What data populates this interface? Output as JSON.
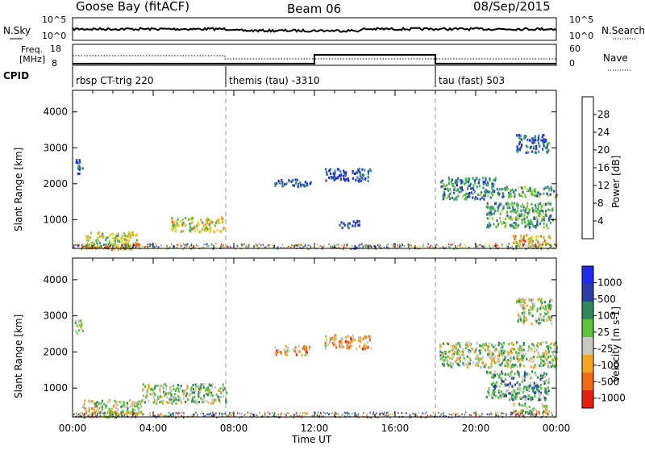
{
  "header": {
    "station": "Goose Bay (fitACF)",
    "beam": "Beam 06",
    "date": "08/Sep/2015"
  },
  "top_panels": {
    "nsky_label": "N.Sky",
    "nsky_ticks": [
      "10^5",
      "10^0"
    ],
    "nsearch_label": "N.Search",
    "nsearch_ticks": [
      "10^5",
      "10^0"
    ],
    "freq_label_1": "Freq.",
    "freq_label_2": "[MHz]",
    "freq_ticks": [
      "18",
      "8"
    ],
    "nave_label": "Nave",
    "nave_ticks": [
      "60",
      "0"
    ],
    "cpid_label": "CPID",
    "cpid_modes": [
      {
        "name": "rbsp CT-trig 220",
        "start_hour": 0
      },
      {
        "name": "themis (tau) -3310",
        "start_hour": 7.6
      },
      {
        "name": "tau (fast) 503",
        "start_hour": 18
      }
    ],
    "nave_steps": [
      {
        "start_hour": 0,
        "end_hour": 12,
        "value": 5
      },
      {
        "start_hour": 12,
        "end_hour": 18,
        "value": 30
      },
      {
        "start_hour": 18,
        "end_hour": 24,
        "value": 5
      }
    ]
  },
  "chart_data": [
    {
      "type": "heatmap",
      "title": "Power",
      "xlabel": "",
      "ylabel": "Slant Range [km]",
      "xlim": [
        0,
        24
      ],
      "ylim": [
        200,
        4600
      ],
      "yticks": [
        "1000",
        "2000",
        "3000",
        "4000"
      ],
      "colorbar_label": "Power [dB]",
      "colorbar_ticks": [
        "4",
        "8",
        "12",
        "16",
        "20",
        "24",
        "28"
      ],
      "colorbar_range": [
        0,
        30
      ],
      "colors": [
        "#1f2cf0",
        "#2c3ea8",
        "#2f6e9b",
        "#3a9a7a",
        "#4fbb55",
        "#9fcc3a",
        "#e8d82a",
        "#f5a623",
        "#f06a18",
        "#e61e12"
      ],
      "regions": [
        {
          "t0": 0.6,
          "t1": 3.2,
          "r0": 250,
          "r1": 700,
          "level": 0.55
        },
        {
          "t0": 0.4,
          "t1": 3.4,
          "r0": 200,
          "r1": 350,
          "level": 0.8
        },
        {
          "t0": 4.8,
          "t1": 7.5,
          "r0": 700,
          "r1": 1100,
          "level": 0.6
        },
        {
          "t0": 0.1,
          "t1": 0.5,
          "r0": 2300,
          "r1": 2700,
          "level": 0.2
        },
        {
          "t0": 10.0,
          "t1": 11.8,
          "r0": 1950,
          "r1": 2150,
          "level": 0.15
        },
        {
          "t0": 12.5,
          "t1": 14.8,
          "r0": 2100,
          "r1": 2450,
          "level": 0.15
        },
        {
          "t0": 18.2,
          "t1": 21.0,
          "r0": 1600,
          "r1": 2200,
          "level": 0.3
        },
        {
          "t0": 21.0,
          "t1": 24.0,
          "r0": 1650,
          "r1": 1950,
          "level": 0.4
        },
        {
          "t0": 20.5,
          "t1": 23.8,
          "r0": 800,
          "r1": 1500,
          "level": 0.4
        },
        {
          "t0": 21.8,
          "t1": 23.8,
          "r0": 300,
          "r1": 600,
          "level": 0.7
        },
        {
          "t0": 22.0,
          "t1": 23.6,
          "r0": 2900,
          "r1": 3400,
          "level": 0.2
        },
        {
          "t0": 13.2,
          "t1": 14.2,
          "r0": 800,
          "r1": 1000,
          "level": 0.15
        }
      ]
    },
    {
      "type": "heatmap",
      "title": "Velocity",
      "xlabel": "Time UT",
      "ylabel": "Slant Range [km]",
      "xlim": [
        0,
        24
      ],
      "ylim": [
        200,
        4600
      ],
      "xticks": [
        "00:00",
        "04:00",
        "08:00",
        "12:00",
        "16:00",
        "20:00",
        "00:00"
      ],
      "yticks": [
        "1000",
        "2000",
        "3000",
        "4000"
      ],
      "colorbar_label": "Velocity [m s-1]",
      "colorbar_ticks": [
        "1000",
        "500",
        "100",
        "25",
        "-25",
        "-100",
        "-500",
        "-1000"
      ],
      "colors": [
        "#1f2cf0",
        "#2c3ea8",
        "#2e8a5a",
        "#5ac43a",
        "#c8c8c0",
        "#f5a623",
        "#f06a18",
        "#e61e12"
      ],
      "regions": [
        {
          "t0": 0.4,
          "t1": 3.4,
          "r0": 200,
          "r1": 700,
          "level": 0.55
        },
        {
          "t0": 3.4,
          "t1": 7.6,
          "r0": 600,
          "r1": 1150,
          "level": 0.5
        },
        {
          "t0": 0.1,
          "t1": 0.5,
          "r0": 2500,
          "r1": 2900,
          "level": 0.5
        },
        {
          "t0": 10.0,
          "t1": 11.8,
          "r0": 1950,
          "r1": 2200,
          "level": 0.7
        },
        {
          "t0": 12.5,
          "t1": 14.8,
          "r0": 2100,
          "r1": 2500,
          "level": 0.7
        },
        {
          "t0": 18.2,
          "t1": 24.0,
          "r0": 1600,
          "r1": 2300,
          "level": 0.5
        },
        {
          "t0": 20.5,
          "t1": 23.6,
          "r0": 700,
          "r1": 1500,
          "level": 0.4
        },
        {
          "t0": 21.8,
          "t1": 23.6,
          "r0": 300,
          "r1": 600,
          "level": 0.5
        },
        {
          "t0": 22.0,
          "t1": 23.8,
          "r0": 2800,
          "r1": 3500,
          "level": 0.5
        }
      ]
    }
  ]
}
